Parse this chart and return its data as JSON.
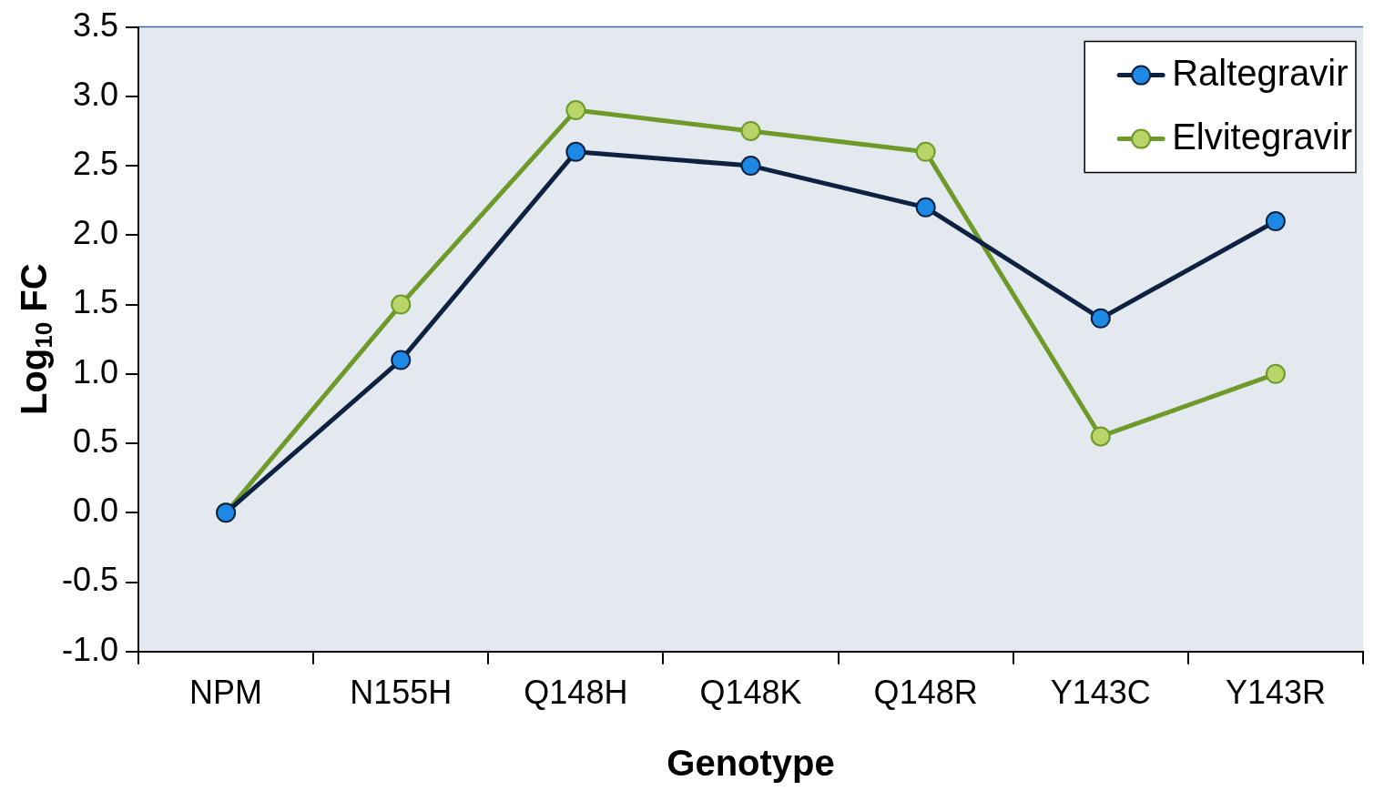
{
  "chart_data": {
    "type": "line",
    "xlabel": "Genotype",
    "ylabel": "Log$_{10}$ FC",
    "categories": [
      "NPM",
      "N155H",
      "Q148H",
      "Q148K",
      "Q148R",
      "Y143C",
      "Y143R"
    ],
    "series": [
      {
        "name": "Raltegravir",
        "color": "#0d2240",
        "colors": [
          "#1e88e5",
          "#1e88e5",
          "#1e88e5",
          "#1e88e5",
          "#1e88e5",
          "#1e88e5",
          "#1e88e5"
        ],
        "values": [
          0,
          1.1,
          2.6,
          2.5,
          2.2,
          1.4,
          2.1
        ]
      },
      {
        "name": "Elvitegravir",
        "color": "#6e9a2a",
        "colors": [
          "#b9d56a",
          "#b9d56a",
          "#b9d56a",
          "#b9d56a",
          "#b9d56a",
          "#b9d56a",
          "#b9d56a"
        ],
        "values": [
          0,
          1.5,
          2.9,
          2.75,
          2.6,
          0.55,
          1.0
        ]
      }
    ],
    "ylim": [
      -1,
      3.5
    ],
    "yticks": [
      {
        "value": -1,
        "label": "-1.0"
      },
      {
        "value": -0.5,
        "label": "-0.5"
      },
      {
        "value": 0,
        "label": "0.0"
      },
      {
        "value": 0.5,
        "label": "0.5"
      },
      {
        "value": 1,
        "label": "1.0"
      },
      {
        "value": 1.5,
        "label": "1.5"
      },
      {
        "value": 2,
        "label": "2.0"
      },
      {
        "value": 2.5,
        "label": "2.5"
      },
      {
        "value": 3,
        "label": "3.0"
      },
      {
        "value": 3.5,
        "label": "3.5"
      }
    ],
    "grid": false,
    "legend": "top right",
    "marker": "circle",
    "line_style": "solid"
  }
}
